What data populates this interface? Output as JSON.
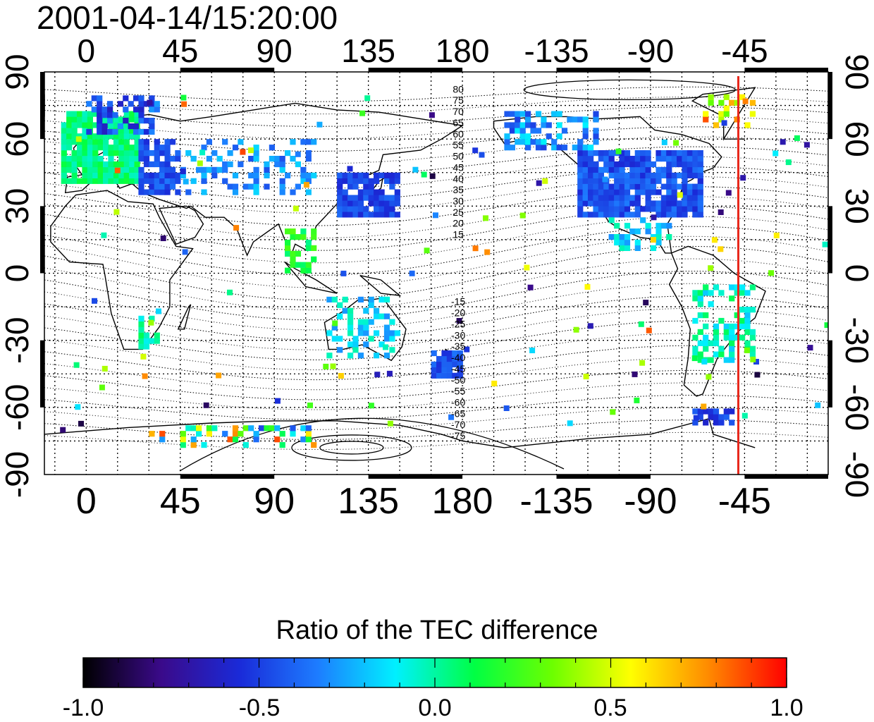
{
  "map": {
    "timestamp": "2001-04-14/15:20:00",
    "top_lon_labels": [
      "0",
      "45",
      "90",
      "135",
      "180",
      "-135",
      "-90",
      "-45"
    ],
    "bottom_lon_labels": [
      "0",
      "45",
      "90",
      "135",
      "180",
      "-135",
      "-90",
      "-45"
    ],
    "left_lat_labels": [
      "90",
      "60",
      "30",
      "0",
      "-30",
      "-60",
      "-90"
    ],
    "right_lat_labels": [
      "90",
      "60",
      "30",
      "0",
      "-30",
      "-60",
      "-90"
    ],
    "lon_range": [
      -20,
      355
    ],
    "lat_range": [
      -90,
      90
    ],
    "grid": true,
    "terminator_line": {
      "lon": -48,
      "color": "#e8281c"
    },
    "contour_labels_north": [
      "80",
      "75",
      "70",
      "65",
      "60",
      "55",
      "50",
      "45",
      "40",
      "35",
      "30",
      "25",
      "20",
      "15"
    ],
    "contour_labels_south": [
      "-15",
      "-20",
      "-25",
      "-30",
      "-35",
      "-40",
      "-45",
      "-50",
      "-55",
      "-60",
      "-65",
      "-70",
      "-75"
    ],
    "colorbar": {
      "title": "Ratio of the TEC difference",
      "min": -1.0,
      "max": 1.0,
      "tick_labels": [
        "-1.0",
        "-0.5",
        "0.0",
        "0.5",
        "1.0"
      ],
      "colors": [
        "#000000",
        "#3a0a8a",
        "#1a2ad8",
        "#1d7cff",
        "#00f0ff",
        "#00ff44",
        "#6cff00",
        "#ffff00",
        "#ff8a00",
        "#ff0000"
      ]
    }
  }
}
